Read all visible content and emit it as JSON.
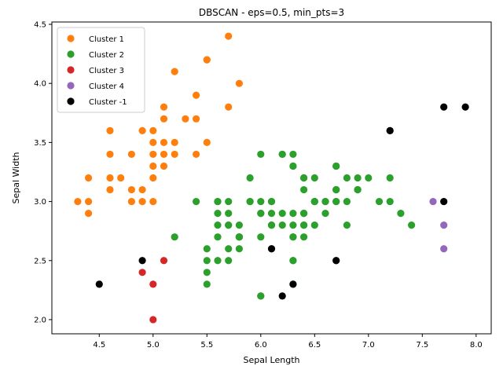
{
  "chart_data": {
    "type": "scatter",
    "title": "DBSCAN - eps=0.5, min_pts=3",
    "xlabel": "Sepal Length",
    "ylabel": "Sepal Width",
    "xlim": [
      4.06,
      8.14
    ],
    "ylim": [
      1.88,
      4.52
    ],
    "xticks": [
      4.5,
      5.0,
      5.5,
      6.0,
      6.5,
      7.0,
      7.5,
      8.0
    ],
    "xtick_labels": [
      "4.5",
      "5.0",
      "5.5",
      "6.0",
      "6.5",
      "7.0",
      "7.5",
      "8.0"
    ],
    "yticks": [
      2.0,
      2.5,
      3.0,
      3.5,
      4.0,
      4.5
    ],
    "ytick_labels": [
      "2.0",
      "2.5",
      "3.0",
      "3.5",
      "4.0",
      "4.5"
    ],
    "grid": false,
    "legend_position": "top-left",
    "series": [
      {
        "name": "Cluster 1",
        "color": "#ff7f0e",
        "points": [
          [
            5.1,
            3.5
          ],
          [
            4.9,
            3.0
          ],
          [
            4.7,
            3.2
          ],
          [
            4.6,
            3.1
          ],
          [
            5.0,
            3.6
          ],
          [
            5.4,
            3.9
          ],
          [
            4.6,
            3.4
          ],
          [
            5.0,
            3.4
          ],
          [
            4.4,
            2.9
          ],
          [
            4.9,
            3.1
          ],
          [
            5.4,
            3.7
          ],
          [
            4.8,
            3.4
          ],
          [
            4.8,
            3.0
          ],
          [
            4.3,
            3.0
          ],
          [
            5.8,
            4.0
          ],
          [
            5.7,
            4.4
          ],
          [
            5.1,
            3.8
          ],
          [
            5.7,
            3.8
          ],
          [
            5.1,
            3.7
          ],
          [
            4.6,
            3.6
          ],
          [
            5.0,
            3.3
          ],
          [
            5.2,
            3.5
          ],
          [
            5.2,
            3.4
          ],
          [
            4.8,
            3.1
          ],
          [
            5.4,
            3.4
          ],
          [
            5.2,
            4.1
          ],
          [
            5.5,
            4.2
          ],
          [
            5.0,
            3.2
          ],
          [
            5.5,
            3.5
          ],
          [
            4.4,
            3.0
          ],
          [
            5.1,
            3.4
          ],
          [
            4.4,
            3.2
          ],
          [
            5.0,
            3.5
          ],
          [
            5.1,
            3.3
          ],
          [
            4.6,
            3.2
          ],
          [
            5.3,
            3.7
          ],
          [
            5.0,
            3.0
          ],
          [
            4.9,
            3.6
          ],
          [
            5.5,
            4.2
          ]
        ]
      },
      {
        "name": "Cluster 2",
        "color": "#2ca02c",
        "points": [
          [
            7.0,
            3.2
          ],
          [
            6.4,
            3.2
          ],
          [
            6.9,
            3.1
          ],
          [
            5.5,
            2.3
          ],
          [
            6.5,
            2.8
          ],
          [
            5.7,
            2.8
          ],
          [
            6.3,
            3.3
          ],
          [
            6.6,
            2.9
          ],
          [
            5.2,
            2.7
          ],
          [
            5.9,
            3.0
          ],
          [
            6.0,
            2.2
          ],
          [
            6.1,
            2.9
          ],
          [
            5.6,
            2.9
          ],
          [
            6.7,
            3.1
          ],
          [
            5.6,
            3.0
          ],
          [
            5.8,
            2.7
          ],
          [
            5.6,
            2.5
          ],
          [
            5.9,
            3.2
          ],
          [
            6.1,
            2.8
          ],
          [
            6.3,
            2.5
          ],
          [
            6.4,
            2.9
          ],
          [
            6.6,
            3.0
          ],
          [
            6.8,
            2.8
          ],
          [
            6.7,
            3.0
          ],
          [
            6.0,
            2.9
          ],
          [
            5.7,
            2.6
          ],
          [
            5.5,
            2.4
          ],
          [
            5.8,
            2.7
          ],
          [
            6.0,
            2.7
          ],
          [
            5.4,
            3.0
          ],
          [
            6.0,
            3.4
          ],
          [
            6.7,
            3.1
          ],
          [
            6.3,
            2.3
          ],
          [
            5.6,
            3.0
          ],
          [
            5.5,
            2.5
          ],
          [
            5.5,
            2.6
          ],
          [
            6.1,
            3.0
          ],
          [
            5.8,
            2.6
          ],
          [
            5.6,
            2.7
          ],
          [
            5.7,
            3.0
          ],
          [
            5.7,
            2.9
          ],
          [
            6.2,
            2.9
          ],
          [
            5.7,
            2.8
          ],
          [
            6.3,
            3.3
          ],
          [
            5.8,
            2.7
          ],
          [
            7.1,
            3.0
          ],
          [
            6.3,
            2.9
          ],
          [
            6.5,
            3.0
          ],
          [
            7.3,
            2.9
          ],
          [
            6.7,
            2.5
          ],
          [
            7.2,
            3.6
          ],
          [
            6.5,
            3.2
          ],
          [
            6.4,
            2.7
          ],
          [
            6.8,
            3.0
          ],
          [
            5.7,
            2.5
          ],
          [
            5.8,
            2.8
          ],
          [
            6.4,
            3.2
          ],
          [
            6.5,
            3.0
          ],
          [
            6.0,
            2.2
          ],
          [
            6.9,
            3.2
          ],
          [
            5.6,
            2.8
          ],
          [
            6.3,
            2.7
          ],
          [
            6.7,
            3.3
          ],
          [
            7.2,
            3.2
          ],
          [
            6.2,
            2.8
          ],
          [
            6.1,
            3.0
          ],
          [
            6.4,
            2.8
          ],
          [
            7.2,
            3.0
          ],
          [
            7.4,
            2.8
          ],
          [
            6.4,
            2.8
          ],
          [
            6.3,
            2.8
          ],
          [
            6.1,
            2.6
          ],
          [
            6.3,
            3.4
          ],
          [
            6.4,
            3.1
          ],
          [
            6.0,
            3.0
          ],
          [
            6.9,
            3.1
          ],
          [
            6.7,
            3.1
          ],
          [
            6.9,
            3.1
          ],
          [
            5.8,
            2.7
          ],
          [
            6.8,
            3.2
          ],
          [
            6.7,
            3.3
          ],
          [
            6.7,
            3.0
          ],
          [
            6.3,
            2.5
          ],
          [
            6.5,
            3.0
          ],
          [
            6.2,
            3.4
          ],
          [
            5.9,
            3.0
          ],
          [
            6.4,
            2.9
          ],
          [
            6.3,
            2.7
          ],
          [
            6.6,
            3.0
          ],
          [
            6.2,
            3.4
          ],
          [
            6.1,
            2.8
          ],
          [
            6.0,
            2.9
          ]
        ]
      },
      {
        "name": "Cluster 3",
        "color": "#d62728",
        "points": [
          [
            5.0,
            2.3
          ],
          [
            4.9,
            2.4
          ],
          [
            5.0,
            2.0
          ],
          [
            5.1,
            2.5
          ]
        ]
      },
      {
        "name": "Cluster 4",
        "color": "#9467bd",
        "points": [
          [
            7.6,
            3.0
          ],
          [
            7.7,
            2.8
          ],
          [
            7.7,
            2.6
          ]
        ]
      },
      {
        "name": "Cluster -1",
        "color": "#000000",
        "points": [
          [
            4.5,
            2.3
          ],
          [
            4.9,
            2.5
          ],
          [
            6.2,
            2.2
          ],
          [
            6.1,
            2.6
          ],
          [
            6.3,
            2.3
          ],
          [
            6.7,
            2.5
          ],
          [
            7.2,
            3.6
          ],
          [
            7.7,
            3.8
          ],
          [
            7.9,
            3.8
          ],
          [
            7.7,
            3.0
          ]
        ]
      }
    ]
  }
}
